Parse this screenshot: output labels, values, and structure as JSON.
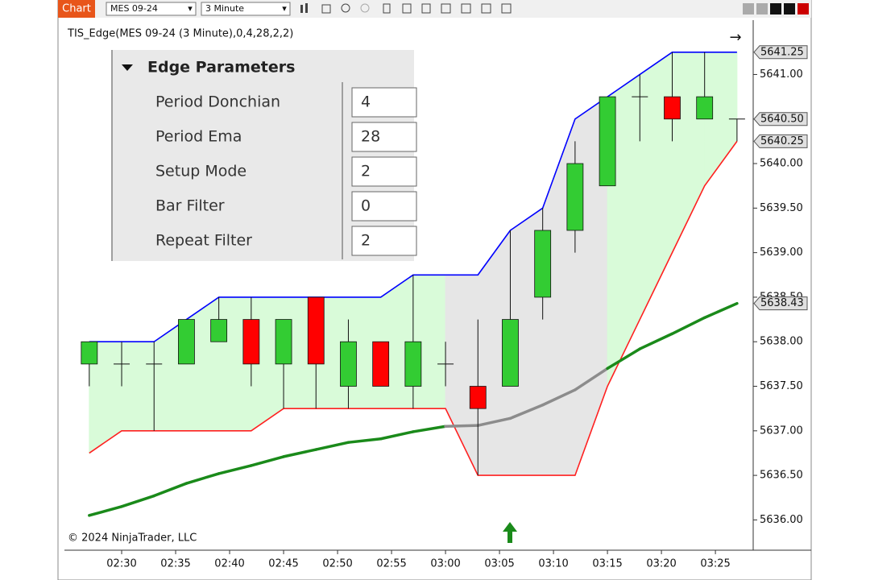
{
  "toolbar": {
    "tab": "Chart",
    "instrument": "MES 09-24",
    "interval": "3 Minute"
  },
  "indicator_label": "TIS_Edge(MES 09-24 (3 Minute),0,4,28,2,2)",
  "copyright": "© 2024 NinjaTrader, LLC",
  "parameters": {
    "title": "Edge Parameters",
    "rows": [
      {
        "label": "Period Donchian",
        "value": "4"
      },
      {
        "label": "Period Ema",
        "value": "28"
      },
      {
        "label": "Setup Mode",
        "value": "2"
      },
      {
        "label": "Bar Filter",
        "value": "0"
      },
      {
        "label": "Repeat Filter",
        "value": "2"
      }
    ]
  },
  "chart_data": {
    "type": "candlestick",
    "x": [
      147,
      150,
      153,
      156,
      159,
      162,
      165,
      168,
      171,
      174,
      177,
      180,
      183,
      186,
      189,
      192,
      195,
      198,
      201,
      204,
      207
    ],
    "open": [
      5637.75,
      5637.75,
      5637.75,
      5637.75,
      5638.0,
      5638.25,
      5637.75,
      5638.5,
      5637.5,
      5638.0,
      5637.5,
      5637.75,
      5637.5,
      5637.5,
      5638.5,
      5639.25,
      5639.75,
      5640.75,
      5640.75,
      5640.5,
      5640.5
    ],
    "high": [
      5638.0,
      5638.0,
      5638.0,
      5638.25,
      5638.5,
      5638.5,
      5638.25,
      5638.5,
      5638.25,
      5638.0,
      5638.75,
      5638.0,
      5638.25,
      5639.25,
      5639.5,
      5640.25,
      5640.75,
      5641.0,
      5641.25,
      5641.25,
      5640.5
    ],
    "low": [
      5637.5,
      5637.5,
      5637.0,
      5637.75,
      5638.0,
      5637.5,
      5637.25,
      5637.25,
      5637.25,
      5637.5,
      5637.25,
      5637.5,
      5636.5,
      5637.5,
      5638.25,
      5639.0,
      5639.75,
      5640.25,
      5640.25,
      5640.5,
      5640.25
    ],
    "close": [
      5638.0,
      5637.75,
      5637.75,
      5638.25,
      5638.25,
      5637.75,
      5638.25,
      5637.75,
      5638.0,
      5637.5,
      5638.0,
      5637.75,
      5637.25,
      5638.25,
      5639.25,
      5640.0,
      5640.75,
      5640.75,
      5640.5,
      5640.75,
      5640.5
    ],
    "up_color": "#33cc33",
    "down_color": "#ff0000",
    "upper": {
      "color": "#0000ff",
      "values": [
        5638.0,
        5638.0,
        5638.0,
        5638.25,
        5638.5,
        5638.5,
        5638.5,
        5638.5,
        5638.5,
        5638.5,
        5638.75,
        5638.75,
        5638.75,
        5639.25,
        5639.5,
        5640.5,
        5640.75,
        5641.0,
        5641.25,
        5641.25,
        5641.25
      ]
    },
    "lower": {
      "color": "#ff2020",
      "values": [
        5636.75,
        5637.0,
        5637.0,
        5637.0,
        5637.0,
        5637.0,
        5637.25,
        5637.25,
        5637.25,
        5637.25,
        5637.25,
        5637.25,
        5636.5,
        5636.5,
        5636.5,
        5636.5,
        5637.5,
        5638.25,
        5639.0,
        5639.75,
        5640.25
      ]
    },
    "ema": {
      "values": [
        5636.05,
        5636.15,
        5636.27,
        5636.41,
        5636.52,
        5636.61,
        5636.71,
        5636.79,
        5636.87,
        5636.91,
        5636.99,
        5637.05,
        5637.06,
        5637.14,
        5637.29,
        5637.46,
        5637.7,
        5637.92,
        5638.09,
        5638.27,
        5638.43
      ],
      "colors": [
        "#1a8a1a",
        "#1a8a1a",
        "#1a8a1a",
        "#1a8a1a",
        "#1a8a1a",
        "#1a8a1a",
        "#1a8a1a",
        "#1a8a1a",
        "#1a8a1a",
        "#1a8a1a",
        "#1a8a1a",
        "#1a8a1a",
        "#8c8c8c",
        "#8c8c8c",
        "#8c8c8c",
        "#8c8c8c",
        "#8c8c8c",
        "#1a8a1a",
        "#1a8a1a",
        "#1a8a1a",
        "#1a8a1a"
      ]
    },
    "band_colors": [
      "#d9fbd9",
      "#d9fbd9",
      "#d9fbd9",
      "#d9fbd9",
      "#d9fbd9",
      "#d9fbd9",
      "#d9fbd9",
      "#d9fbd9",
      "#d9fbd9",
      "#d9fbd9",
      "#d9fbd9",
      "#e6e6e6",
      "#e6e6e6",
      "#e6e6e6",
      "#e6e6e6",
      "#e6e6e6",
      "#d9fbd9",
      "#d9fbd9",
      "#d9fbd9",
      "#d9fbd9",
      "#d9fbd9"
    ],
    "xlim": [
      144.7,
      208.5
    ],
    "xticks": [
      {
        "value": 150,
        "label": "02:30"
      },
      {
        "value": 155,
        "label": "02:35"
      },
      {
        "value": 160,
        "label": "02:40"
      },
      {
        "value": 165,
        "label": "02:45"
      },
      {
        "value": 170,
        "label": "02:50"
      },
      {
        "value": 175,
        "label": "02:55"
      },
      {
        "value": 180,
        "label": "03:00"
      },
      {
        "value": 185,
        "label": "03:05"
      },
      {
        "value": 190,
        "label": "03:10"
      },
      {
        "value": 195,
        "label": "03:15"
      },
      {
        "value": 200,
        "label": "03:20"
      },
      {
        "value": 205,
        "label": "03:25"
      }
    ],
    "ylim": [
      5635.66,
      5641.61
    ],
    "yticks": [
      {
        "value": 5636,
        "label": "5636.00"
      },
      {
        "value": 5636.5,
        "label": "5636.50"
      },
      {
        "value": 5637,
        "label": "5637.00"
      },
      {
        "value": 5637.5,
        "label": "5637.50"
      },
      {
        "value": 5638,
        "label": "5638.00"
      },
      {
        "value": 5638.5,
        "label": "5638.50"
      },
      {
        "value": 5639,
        "label": "5639.00"
      },
      {
        "value": 5639.5,
        "label": "5639.50"
      },
      {
        "value": 5640,
        "label": "5640.00"
      },
      {
        "value": 5640.5,
        "label": "5640.50"
      },
      {
        "value": 5641,
        "label": "5641.00"
      }
    ],
    "price_markers": [
      {
        "value": 5641.25,
        "label": "5641.25"
      },
      {
        "value": 5640.5,
        "label": "5640.50"
      },
      {
        "value": 5640.25,
        "label": "5640.25"
      },
      {
        "value": 5638.43,
        "label": "5638.43"
      }
    ]
  }
}
